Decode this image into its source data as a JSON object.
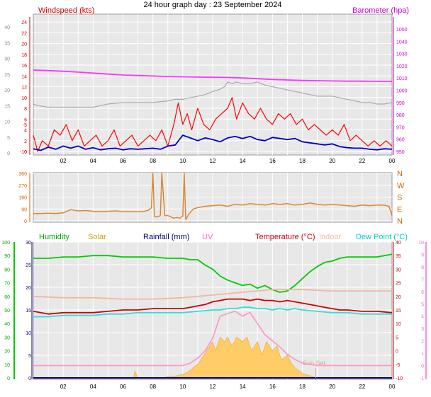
{
  "title": "24 hour graph day : 23 September 2024",
  "chart_data": [
    {
      "id": "wind",
      "type": "line",
      "labels": {
        "left": "Windspeed (kts)",
        "right": "Barometer (hpa)"
      },
      "x": {
        "range": [
          0,
          24
        ],
        "ticks": [
          "02",
          "04",
          "06",
          "08",
          "10",
          "12",
          "14",
          "16",
          "18",
          "20",
          "22",
          "00"
        ]
      },
      "y_outer_ticks": [
        0,
        5,
        10,
        15,
        20,
        25,
        30,
        35,
        40
      ],
      "y_inner_ticks": [
        -10,
        -5,
        0,
        2,
        4,
        6,
        8,
        10,
        12,
        14,
        16,
        18,
        20,
        22,
        24
      ],
      "y_right_ticks": [
        950,
        960,
        970,
        980,
        990,
        1000,
        1010,
        1020,
        1030,
        1040,
        1050
      ],
      "series": [
        {
          "color": "#ff0000",
          "x": [
            0,
            0.3,
            0.6,
            1,
            1.4,
            1.8,
            2.2,
            2.6,
            3,
            3.4,
            3.8,
            4.2,
            4.6,
            5,
            5.4,
            5.8,
            6.2,
            6.6,
            7,
            7.4,
            7.8,
            8.2,
            8.6,
            9,
            9.4,
            9.7,
            10,
            10.3,
            10.6,
            11,
            11.4,
            11.8,
            12.2,
            12.6,
            13,
            13.3,
            13.6,
            14,
            14.4,
            14.8,
            15.2,
            15.6,
            16,
            16.4,
            16.8,
            17.2,
            17.6,
            18,
            18.4,
            18.8,
            19.2,
            19.6,
            20,
            20.4,
            20.8,
            21.2,
            21.6,
            22,
            22.4,
            22.8,
            23.2,
            23.6,
            24
          ],
          "values": [
            3,
            0,
            2,
            1,
            4,
            3,
            5,
            2,
            4,
            1,
            2,
            3,
            1,
            2,
            4,
            1,
            2,
            3,
            1,
            2,
            3,
            2,
            4,
            1,
            5,
            9,
            5,
            7,
            4,
            8,
            5,
            4,
            6,
            7,
            8,
            10,
            6,
            9,
            7,
            6,
            8,
            6,
            5,
            7,
            6,
            7,
            5,
            6,
            4,
            5,
            4,
            3,
            4,
            3,
            5,
            2,
            3,
            2,
            1,
            2,
            1,
            2,
            1
          ]
        },
        {
          "color": "#0000cc",
          "x": [
            0,
            0.5,
            1,
            1.5,
            2,
            2.5,
            3,
            3.5,
            4,
            4.5,
            5,
            5.5,
            6,
            6.5,
            7,
            7.5,
            8,
            8.5,
            9,
            9.5,
            10,
            10.5,
            11,
            11.5,
            12,
            12.5,
            13,
            13.5,
            14,
            14.5,
            15,
            15.5,
            16,
            16.5,
            17,
            17.5,
            18,
            18.5,
            19,
            19.5,
            20,
            20.5,
            21,
            21.5,
            22,
            22.5,
            23,
            23.5,
            24
          ],
          "values": [
            0.5,
            0.2,
            0.8,
            0.4,
            1,
            0.6,
            1,
            0.4,
            0.7,
            0.3,
            0.5,
            0.6,
            0.3,
            0.5,
            0.4,
            0.5,
            0.6,
            0.4,
            1,
            1.2,
            3,
            2.5,
            2,
            2.5,
            2.2,
            1.8,
            2.5,
            2.8,
            2.4,
            2.8,
            2.2,
            2,
            2.6,
            2.4,
            2.2,
            2.4,
            1.8,
            1.6,
            1.4,
            1.2,
            1.4,
            0.9,
            0.7,
            0.6,
            0.6,
            0.4,
            0.3,
            0.5,
            0.4
          ]
        },
        {
          "color": "#ff33ff",
          "axis": "right",
          "x": [
            0,
            1,
            2,
            3,
            4,
            5,
            6,
            7,
            8,
            9,
            10,
            11,
            12,
            13,
            14,
            15,
            16,
            17,
            18,
            19,
            20,
            21,
            22,
            23,
            24
          ],
          "values": [
            1016.5,
            1016,
            1015.5,
            1014.8,
            1014,
            1013.2,
            1012.4,
            1012,
            1011.6,
            1011.2,
            1011,
            1010.8,
            1010.6,
            1010.4,
            1010,
            1009.4,
            1008.8,
            1008.4,
            1008,
            1007.8,
            1007.6,
            1007.4,
            1007.4,
            1007.2,
            1007.2
          ]
        },
        {
          "color": "#aaaaaa",
          "axis": "outer",
          "x": [
            0,
            0.3,
            1,
            2,
            3,
            4,
            4.5,
            5,
            6,
            7,
            8,
            9,
            9.5,
            10,
            10.5,
            11,
            11.5,
            12,
            12.4,
            12.8,
            13,
            13.3,
            13.6,
            14,
            14.5,
            15,
            15.5,
            16,
            16.5,
            17,
            17.5,
            18,
            18.5,
            19,
            19.5,
            20,
            20.5,
            21,
            21.5,
            22,
            22.5,
            23,
            23.5,
            24
          ],
          "values": [
            15.5,
            15,
            14.5,
            14.5,
            14.5,
            14.5,
            15,
            15.5,
            16,
            16,
            16,
            16.5,
            17,
            17,
            17.5,
            18,
            18.5,
            19.5,
            20,
            21,
            22.5,
            22,
            22.5,
            22,
            22,
            22.5,
            21.5,
            21,
            20.5,
            20,
            19.5,
            19,
            18.5,
            18,
            18,
            18,
            17.5,
            17,
            16.5,
            16,
            16,
            15.5,
            15.5,
            16
          ]
        }
      ]
    },
    {
      "id": "direction",
      "type": "line",
      "x": {
        "range": [
          0,
          24
        ]
      },
      "y_ticks": [
        0,
        90,
        180,
        270,
        360
      ],
      "y_right_labels": [
        "N",
        "W",
        "S",
        "E",
        "N"
      ],
      "series": [
        {
          "color": "#dd8833",
          "x": [
            0,
            0.5,
            1,
            1.5,
            2,
            2.5,
            3,
            3.5,
            4,
            4.5,
            5,
            5.5,
            6,
            6.5,
            7,
            7.4,
            7.7,
            7.9,
            8,
            8.1,
            8.3,
            8.5,
            8.6,
            8.8,
            9,
            9.2,
            9.4,
            9.6,
            9.8,
            10,
            10.1,
            10.2,
            10.4,
            10.7,
            11,
            11.5,
            12,
            12.5,
            13,
            13.5,
            14,
            14.5,
            15,
            15.5,
            16,
            16.5,
            17,
            17.5,
            18,
            18.5,
            19,
            19.5,
            20,
            20.5,
            21,
            21.5,
            22,
            22.5,
            23,
            23.5,
            23.8,
            24
          ],
          "values": [
            55,
            55,
            58,
            55,
            60,
            85,
            75,
            78,
            72,
            70,
            72,
            75,
            70,
            70,
            68,
            72,
            80,
            100,
            360,
            30,
            30,
            40,
            360,
            40,
            40,
            30,
            20,
            25,
            20,
            35,
            360,
            10,
            50,
            90,
            100,
            110,
            115,
            120,
            110,
            125,
            120,
            130,
            125,
            120,
            130,
            125,
            130,
            120,
            125,
            135,
            125,
            120,
            125,
            120,
            115,
            110,
            120,
            115,
            120,
            118,
            110,
            40
          ]
        }
      ]
    },
    {
      "id": "climate",
      "type": "line",
      "labels": [
        "Humidity",
        "Solar",
        "Rainfall (mm)",
        "UV",
        "Temperature (°C)",
        "Indoor",
        "Dew Point (°C)"
      ],
      "label_colors": [
        "#00aa00",
        "#c8a000",
        "#000080",
        "#ff66cc",
        "#cc0000",
        "#f0b8a0",
        "#00cccc"
      ],
      "annotation": "Sun Set",
      "x": {
        "range": [
          0,
          24
        ],
        "ticks": [
          "02",
          "04",
          "06",
          "08",
          "10",
          "12",
          "14",
          "16",
          "18",
          "20",
          "22",
          "00"
        ]
      },
      "y_humidity_ticks": [
        0,
        10,
        20,
        30,
        40,
        50,
        60,
        70,
        80,
        90,
        100
      ],
      "y_solar_ticks": [
        0,
        5,
        10,
        15,
        20,
        25,
        30
      ],
      "y_temp_ticks": [
        -10,
        -5,
        0,
        5,
        10,
        15,
        20,
        25,
        30,
        35,
        40
      ],
      "y_uv_ticks": [
        -1,
        0,
        1,
        2,
        3,
        4,
        5,
        6,
        7,
        8,
        9,
        10
      ],
      "series": [
        {
          "name": "Humidity",
          "color": "#00cc00",
          "axis": "humidity",
          "x": [
            0,
            1,
            2,
            3,
            4,
            5,
            6,
            7,
            8,
            9,
            9.5,
            10,
            10.5,
            11,
            11.5,
            12,
            12.5,
            13,
            13.5,
            14,
            14.5,
            15,
            15.5,
            16,
            16.5,
            17,
            17.5,
            18,
            18.5,
            19,
            19.5,
            20,
            20.5,
            21,
            22,
            23,
            24
          ],
          "values": [
            88,
            88,
            89,
            89,
            90,
            90,
            89,
            89,
            89,
            88,
            88,
            88,
            87,
            87,
            83,
            80,
            75,
            72,
            70,
            68,
            69,
            66,
            68,
            65,
            63,
            64,
            68,
            73,
            78,
            82,
            85,
            86,
            88,
            89,
            89,
            89,
            91
          ]
        },
        {
          "name": "Indoor",
          "color": "#f0b8a0",
          "axis": "temp",
          "x": [
            0,
            2,
            4,
            6,
            8,
            10,
            12,
            14,
            15,
            16,
            18,
            20,
            22,
            24
          ],
          "values": [
            20,
            19.5,
            19.5,
            19,
            19,
            19.5,
            20.5,
            21.5,
            22,
            22.5,
            22.5,
            22,
            22,
            22
          ]
        },
        {
          "name": "Temperature (°C)",
          "color": "#cc0000",
          "axis": "temp",
          "x": [
            0,
            0.5,
            1,
            2,
            3,
            4,
            5,
            6,
            7,
            8,
            9,
            9.5,
            10,
            10.5,
            11,
            11.5,
            12,
            12.5,
            13,
            13.5,
            14,
            14.5,
            15,
            15.5,
            16,
            16.5,
            17,
            17.5,
            18,
            18.5,
            19,
            19.5,
            20,
            20.5,
            21,
            22,
            23,
            24
          ],
          "values": [
            14.5,
            14,
            13.5,
            14,
            14,
            14,
            14.5,
            15,
            15,
            15.5,
            15.5,
            15.5,
            15.5,
            16,
            16.5,
            17,
            18,
            18.5,
            19,
            19,
            19,
            18.5,
            19,
            18.5,
            18.5,
            18,
            18.5,
            18,
            17.5,
            17,
            16.5,
            16,
            15.5,
            15,
            15,
            14.5,
            14.5,
            14
          ]
        },
        {
          "name": "Dew Point (°C)",
          "color": "#33dddd",
          "axis": "temp",
          "x": [
            0,
            1,
            2,
            3,
            4,
            5,
            6,
            7,
            8,
            9,
            10,
            11,
            12,
            12.5,
            13,
            13.5,
            14,
            14.5,
            15,
            15.5,
            16,
            16.5,
            17,
            17.5,
            18,
            19,
            20,
            21,
            22,
            23,
            24
          ],
          "values": [
            12.5,
            12.5,
            13,
            13,
            13,
            13.5,
            13.5,
            14,
            14,
            14,
            14,
            14.5,
            15,
            15,
            15.5,
            15.5,
            16,
            16,
            15.5,
            15.5,
            15,
            15.5,
            15,
            15.5,
            15,
            14.5,
            14,
            14,
            13.5,
            13.5,
            13.5
          ]
        },
        {
          "name": "Solar",
          "color": "#ffcc66",
          "axis": "solar",
          "fill": true,
          "x": [
            0,
            6.7,
            6.8,
            7,
            8,
            8.8,
            9,
            9.5,
            10,
            10.3,
            10.6,
            11,
            11.4,
            11.8,
            12,
            12.2,
            12.5,
            12.8,
            13,
            13.3,
            13.6,
            14,
            14.3,
            14.6,
            15,
            15.3,
            15.6,
            16,
            16.3,
            16.6,
            17,
            17.3,
            17.6,
            18,
            18.5,
            19,
            24
          ],
          "values": [
            0,
            0,
            1.5,
            0,
            0,
            0.1,
            0.3,
            0.4,
            0.8,
            1.2,
            2,
            3,
            5,
            7,
            8,
            6,
            9,
            8,
            9,
            7,
            9,
            8,
            9,
            6,
            8,
            5,
            8,
            6,
            7,
            4,
            5,
            3,
            2,
            1,
            0.5,
            0,
            0
          ]
        },
        {
          "name": "UV",
          "color": "#ff99cc",
          "axis": "uv",
          "x": [
            0,
            10,
            10.5,
            11,
            11.5,
            12,
            12.5,
            13,
            13.5,
            14,
            14.5,
            15,
            15.5,
            16,
            16.5,
            17,
            17.5,
            18,
            19,
            24
          ],
          "values": [
            0,
            0,
            0.2,
            0.6,
            1.2,
            2.2,
            4,
            4.2,
            4.4,
            4,
            4.3,
            3.4,
            2.5,
            2,
            1.5,
            0.9,
            0.5,
            0.2,
            0,
            0
          ]
        },
        {
          "name": "Rainfall (mm)",
          "color": "#000080",
          "axis": "solar",
          "x": [
            0,
            24
          ],
          "values": [
            0,
            0
          ]
        }
      ]
    }
  ]
}
